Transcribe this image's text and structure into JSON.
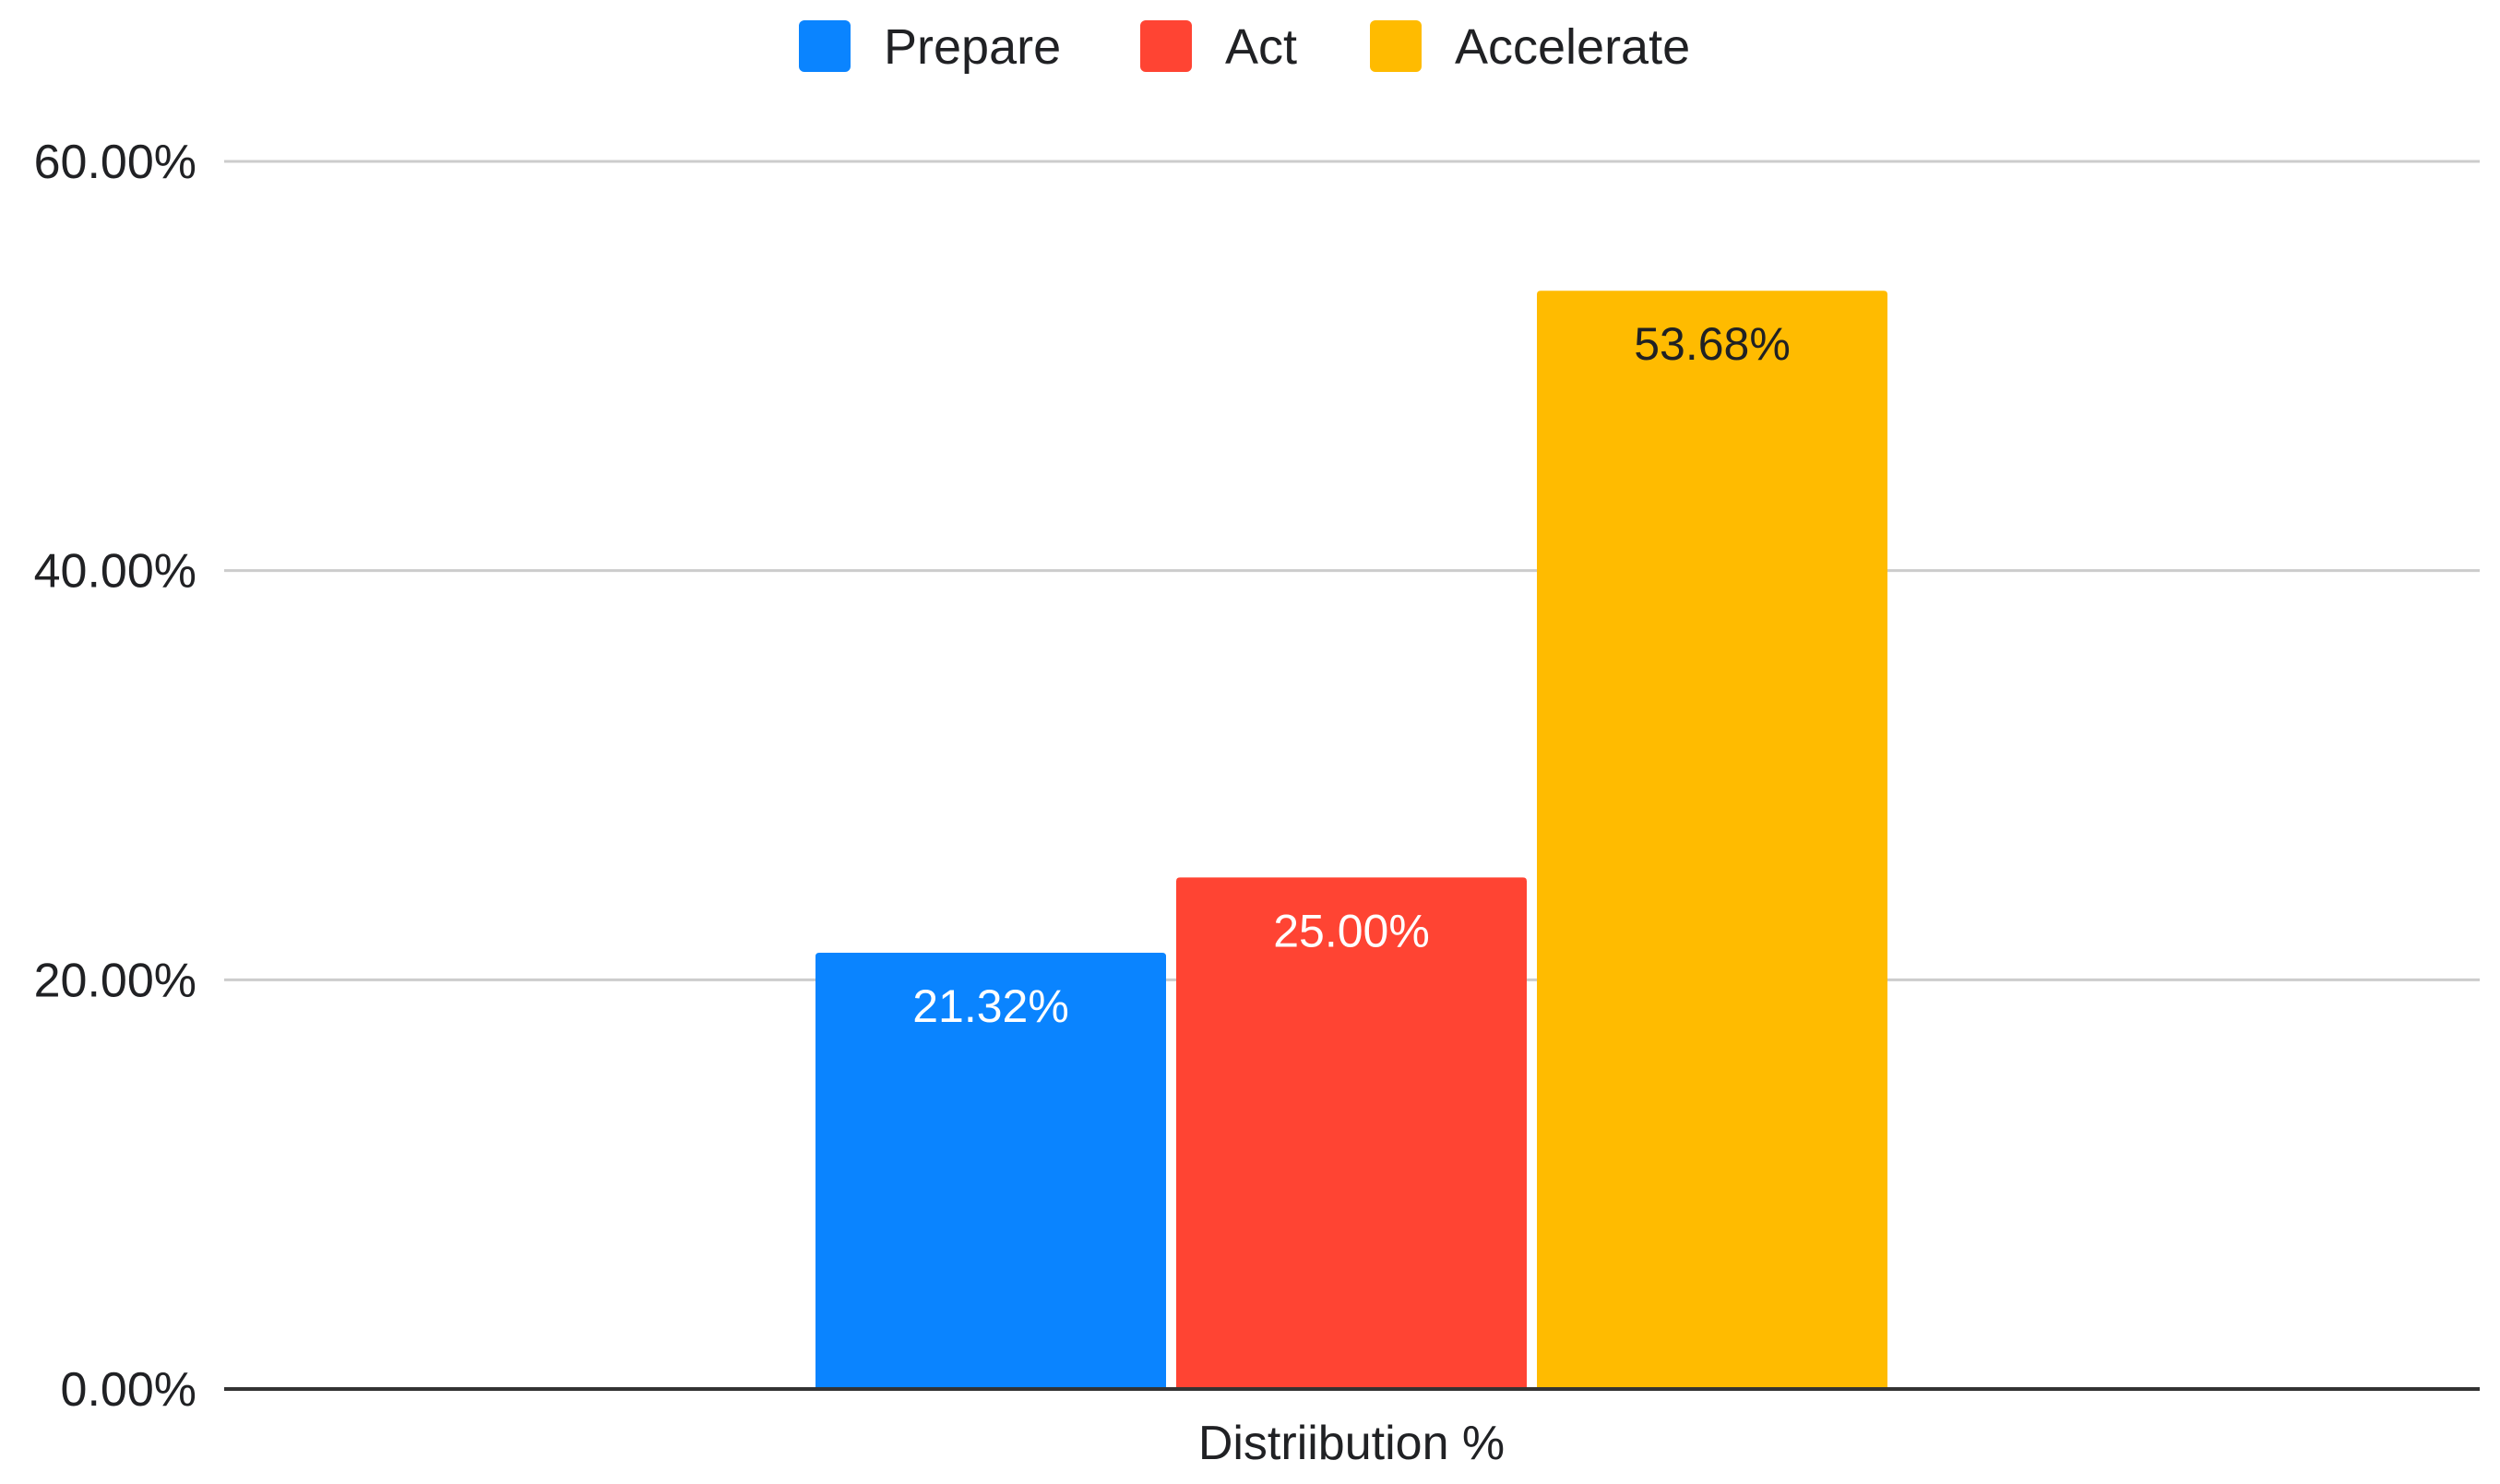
{
  "chart_data": {
    "type": "bar",
    "categories": [
      "Distriibution %"
    ],
    "series": [
      {
        "name": "Prepare",
        "values": [
          21.32
        ],
        "label": "21.32%",
        "color": "#0A84FF",
        "label_color": "#ffffff"
      },
      {
        "name": "Act",
        "values": [
          25.0
        ],
        "label": "25.00%",
        "color": "#FF4433",
        "label_color": "#ffffff"
      },
      {
        "name": "Accelerate",
        "values": [
          53.68
        ],
        "label": "53.68%",
        "color": "#FFBB00",
        "label_color": "#202124"
      }
    ],
    "title": "",
    "xlabel": "Distriibution %",
    "ylabel": "",
    "ylim": [
      0,
      60
    ],
    "yticks": [
      0,
      20,
      40,
      60
    ],
    "ytick_labels": [
      "0.00%",
      "20.00%",
      "40.00%",
      "60.00%"
    ],
    "grid": true,
    "legend_position": "top-center"
  }
}
